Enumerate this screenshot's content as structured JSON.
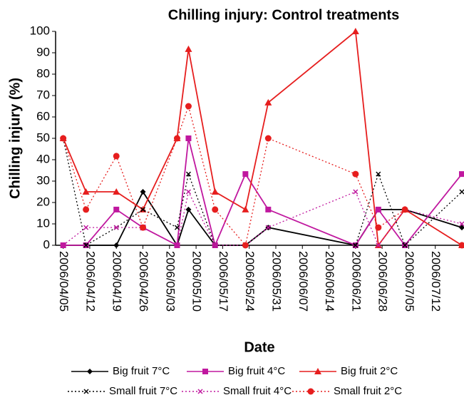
{
  "chart_data": {
    "type": "line",
    "title": "Chilling injury: Control treatments",
    "x_label": "Date",
    "y_label": "Chilling injury (%)",
    "xlim": [
      "2006/04/03",
      "2006/07/19"
    ],
    "xticks": [
      "2006/04/05",
      "2006/04/12",
      "2006/04/19",
      "2006/04/26",
      "2006/05/03",
      "2006/05/10",
      "2006/05/17",
      "2006/05/24",
      "2006/05/31",
      "2006/06/07",
      "2006/06/14",
      "2006/06/21",
      "2006/06/28",
      "2006/07/05",
      "2006/07/12"
    ],
    "ylim": [
      0,
      100
    ],
    "yticks": [
      0,
      10,
      20,
      30,
      40,
      50,
      60,
      70,
      80,
      90,
      100
    ],
    "series": [
      {
        "name": "Big fruit 7°C",
        "color": "#000000",
        "marker": "diamond",
        "dash": "solid",
        "x": [
          "2006/04/05",
          "2006/04/11",
          "2006/04/19",
          "2006/04/26",
          "2006/05/05",
          "2006/05/08",
          "2006/05/15",
          "2006/05/23",
          "2006/05/29",
          "2006/06/21",
          "2006/06/27",
          "2006/07/04",
          "2006/07/19"
        ],
        "values": [
          0,
          0,
          0,
          25,
          0,
          16.7,
          0,
          0,
          8.3,
          0,
          16.7,
          16.7,
          8.3
        ]
      },
      {
        "name": "Big fruit 4°C",
        "color": "#c0189f",
        "marker": "square",
        "dash": "solid",
        "x": [
          "2006/04/05",
          "2006/04/11",
          "2006/04/19",
          "2006/04/26",
          "2006/05/05",
          "2006/05/08",
          "2006/05/15",
          "2006/05/23",
          "2006/05/29",
          "2006/06/21",
          "2006/06/27",
          "2006/07/04",
          "2006/07/19"
        ],
        "values": [
          0,
          0,
          16.7,
          8.3,
          0,
          50,
          0,
          33.3,
          16.7,
          0,
          16.7,
          0,
          33.3
        ]
      },
      {
        "name": "Big fruit 2°C",
        "color": "#e61e1e",
        "marker": "triangle",
        "dash": "solid",
        "x": [
          "2006/04/05",
          "2006/04/11",
          "2006/04/19",
          "2006/04/26",
          "2006/05/05",
          "2006/05/08",
          "2006/05/15",
          "2006/05/23",
          "2006/05/29",
          "2006/06/21",
          "2006/06/27",
          "2006/07/04",
          "2006/07/19"
        ],
        "values": [
          50,
          25,
          25,
          16.7,
          50,
          91.7,
          25,
          16.7,
          66.7,
          100,
          0,
          16.7,
          0
        ]
      },
      {
        "name": "Small fruit 7°C",
        "color": "#000000",
        "marker": "x",
        "dash": "dotted",
        "x": [
          "2006/04/05",
          "2006/04/11",
          "2006/04/19",
          "2006/04/26",
          "2006/05/05",
          "2006/05/08",
          "2006/05/15",
          "2006/05/23",
          "2006/05/29",
          "2006/06/21",
          "2006/06/27",
          "2006/07/04",
          "2006/07/19"
        ],
        "values": [
          50,
          0,
          8.3,
          16.7,
          8.3,
          33.3,
          0,
          0,
          8.3,
          0,
          33.3,
          0,
          25
        ]
      },
      {
        "name": "Small fruit 4°C",
        "color": "#c0189f",
        "marker": "x",
        "dash": "dotted",
        "x": [
          "2006/04/05",
          "2006/04/11",
          "2006/04/19",
          "2006/04/26",
          "2006/05/05",
          "2006/05/08",
          "2006/05/15",
          "2006/05/23",
          "2006/05/29",
          "2006/06/21",
          "2006/06/27",
          "2006/07/04",
          "2006/07/19"
        ],
        "values": [
          0,
          8.3,
          8.3,
          8.3,
          0,
          25,
          0,
          0,
          8.3,
          25,
          0,
          16.7,
          10
        ]
      },
      {
        "name": "Small fruit 2°C",
        "color": "#e61e1e",
        "marker": "circle",
        "dash": "dotted",
        "x": [
          "2006/04/05",
          "2006/04/11",
          "2006/04/19",
          "2006/04/26",
          "2006/05/05",
          "2006/05/08",
          "2006/05/15",
          "2006/05/23",
          "2006/05/29",
          "2006/06/21",
          "2006/06/27",
          "2006/07/04",
          "2006/07/19"
        ],
        "values": [
          50,
          16.7,
          41.7,
          8.3,
          50,
          65,
          16.7,
          0,
          50,
          33.3,
          8.3,
          16.7,
          0
        ]
      }
    ]
  }
}
